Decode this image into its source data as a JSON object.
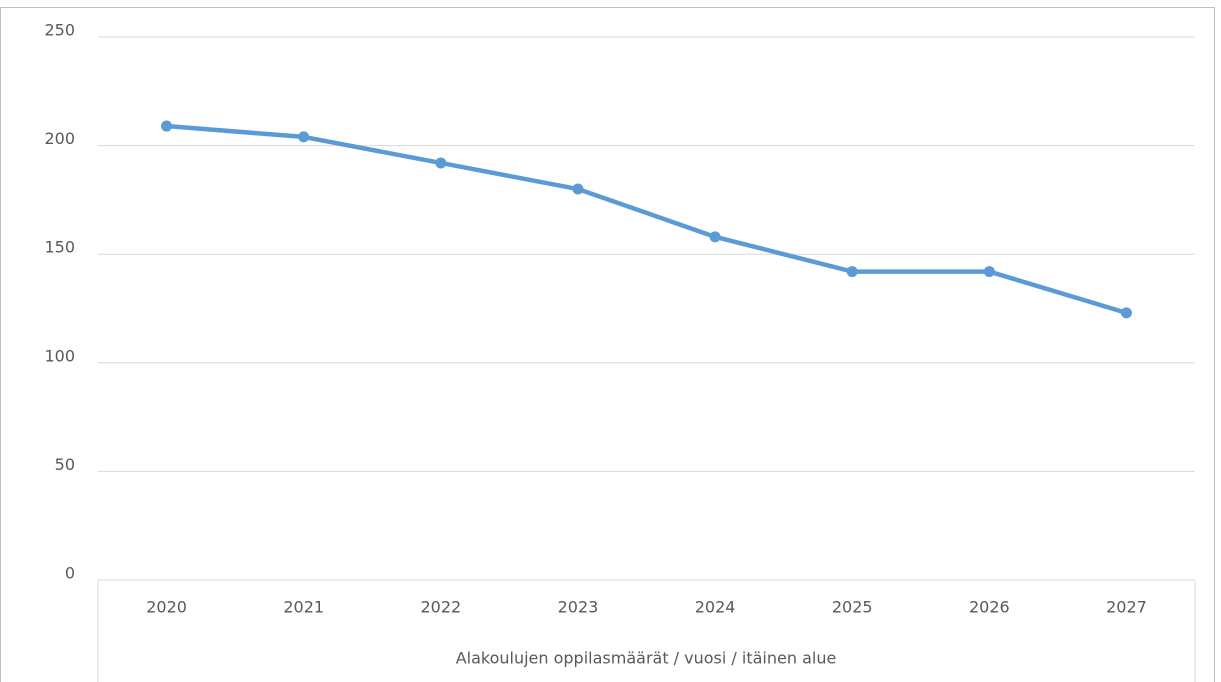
{
  "chart_data": {
    "type": "line",
    "x_label": "Alakoulujen oppilasmäärät / vuosi / itäinen alue",
    "categories": [
      "2020",
      "2021",
      "2022",
      "2023",
      "2024",
      "2025",
      "2026",
      "2027"
    ],
    "values": [
      209,
      204,
      192,
      180,
      158,
      142,
      142,
      123
    ],
    "color": "#5b9bd5",
    "ylim": [
      0,
      250
    ],
    "yticks": [
      0,
      50,
      100,
      150,
      200,
      250
    ],
    "grid": true
  }
}
